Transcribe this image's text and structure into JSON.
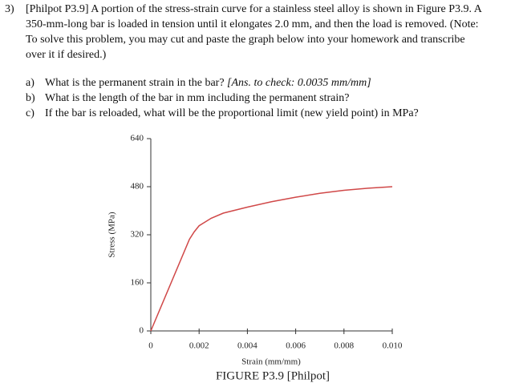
{
  "problem": {
    "number": "3)",
    "lines": [
      "[Philpot P3.9] A portion of the stress-strain curve for a stainless steel alloy is shown in Figure P3.9. A",
      "350-mm-long bar is loaded in tension until it elongates 2.0 mm, and then the load is removed. (Note:",
      "To solve this problem, you may cut and paste the graph below into your homework and transcribe",
      "over it if desired.)"
    ]
  },
  "questions": [
    {
      "label": "a)",
      "text": "What is the permanent strain in the bar?",
      "hint": "[Ans. to check: 0.0035 mm/mm]"
    },
    {
      "label": "b)",
      "text": "What is the length of the bar in mm including the permanent strain?"
    },
    {
      "label": "c)",
      "text": "If the bar is reloaded, what will be the proportional limit (new yield point) in MPa?"
    }
  ],
  "chart_data": {
    "type": "line",
    "caption": "FIGURE P3.9  [Philpot]",
    "x_label": "Strain (mm/mm)",
    "y_label": "Stress (MPa)",
    "x": [
      0,
      0.0016,
      0.0018,
      0.002,
      0.0025,
      0.003,
      0.004,
      0.005,
      0.006,
      0.007,
      0.008,
      0.009,
      0.01
    ],
    "series": [
      {
        "color": "#d04848",
        "values": [
          0,
          305,
          330,
          350,
          375,
          392,
          412,
          430,
          445,
          458,
          468,
          475,
          480
        ]
      }
    ],
    "xlim": [
      0,
      0.01
    ],
    "ylim": [
      0,
      640
    ],
    "xticks": [
      0,
      0.002,
      0.004,
      0.006,
      0.008,
      {
        "value": 0.01,
        "label": "0.010"
      }
    ],
    "yticks": [
      0,
      160,
      320,
      480,
      640
    ]
  }
}
